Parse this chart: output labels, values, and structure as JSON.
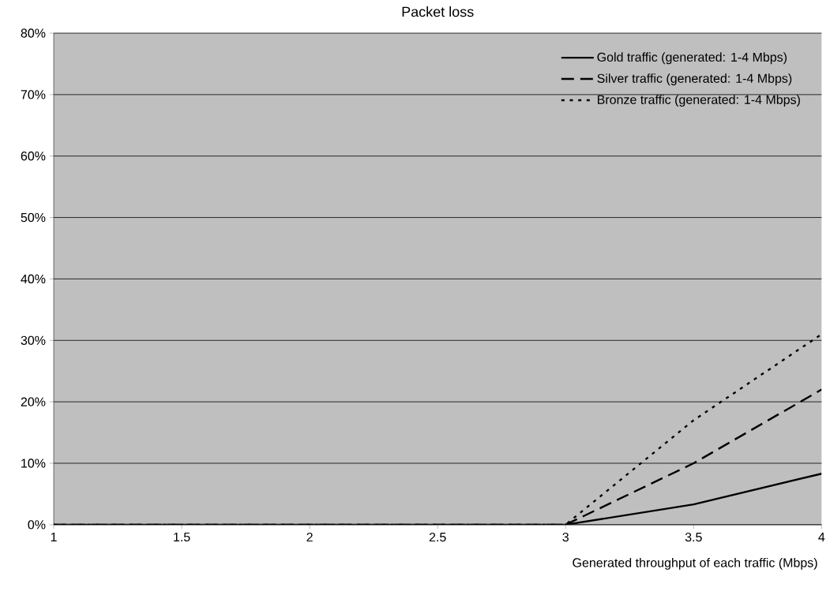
{
  "chart_data": {
    "type": "line",
    "title": "Packet loss",
    "xlabel": "Generated throughput of each traffic (Mbps)",
    "x": [
      1,
      1.5,
      2,
      2.5,
      3,
      3.5,
      4
    ],
    "series": [
      {
        "name": "Gold traffic (generated: 1-4 Mbps)",
        "color": "#000000",
        "line_style": "solid",
        "values": [
          0,
          0,
          0,
          0,
          0,
          3.3,
          8.3
        ]
      },
      {
        "name": "Silver traffic (generated: 1-4 Mbps)",
        "color": "#000000",
        "line_style": "dashed",
        "values": [
          0,
          0,
          0,
          0,
          0,
          10,
          22
        ]
      },
      {
        "name": "Bronze traffic (generated: 1-4 Mbps)",
        "color": "#000000",
        "line_style": "dotted",
        "values": [
          0,
          0,
          0,
          0,
          0,
          17,
          31
        ]
      }
    ],
    "xlim": [
      1,
      4
    ],
    "xticks": [
      1,
      1.5,
      2,
      2.5,
      3,
      3.5,
      4
    ],
    "ylim": [
      0,
      80
    ],
    "yticks": [
      {
        "value": 0,
        "label": "0%"
      },
      {
        "value": 10,
        "label": "10%"
      },
      {
        "value": 20,
        "label": "20%"
      },
      {
        "value": 30,
        "label": "30%"
      },
      {
        "value": 40,
        "label": "40%"
      },
      {
        "value": 50,
        "label": "50%"
      },
      {
        "value": 60,
        "label": "60%"
      },
      {
        "value": 70,
        "label": "70%"
      },
      {
        "value": 80,
        "label": "80%"
      }
    ],
    "grid": "y",
    "legend": "top right",
    "marker": "none"
  }
}
